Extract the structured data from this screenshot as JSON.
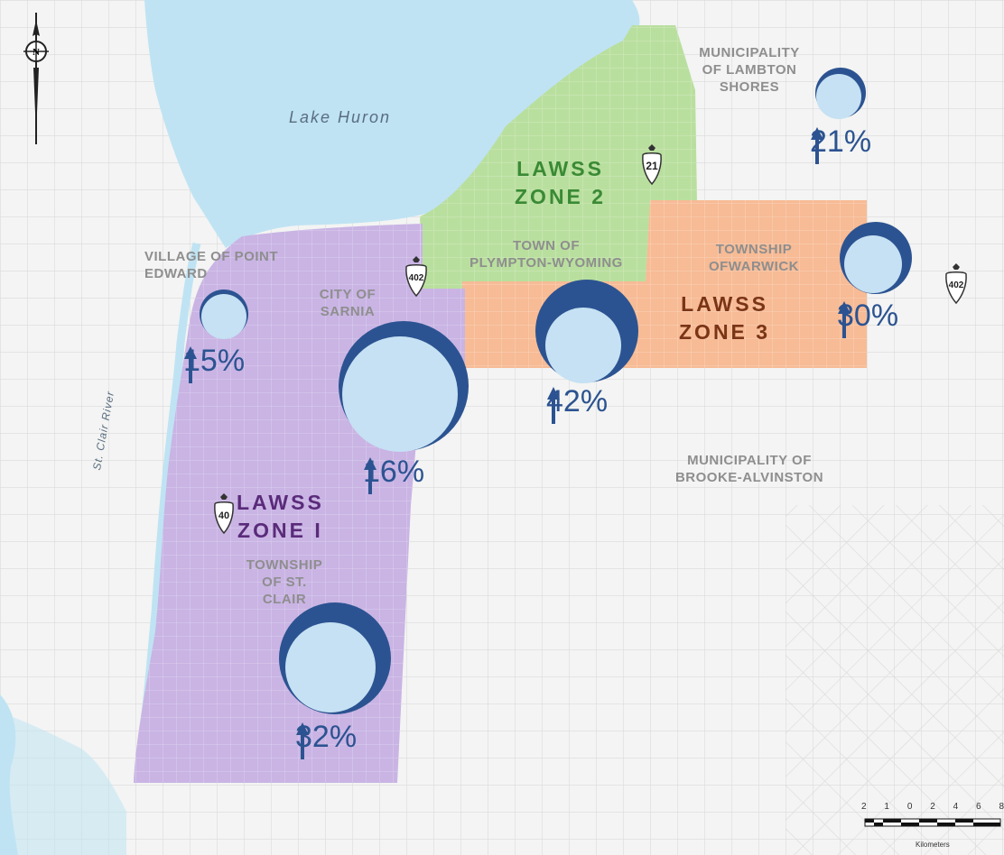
{
  "map": {
    "water_labels": {
      "lake": "Lake Huron",
      "river": "St. Clair River"
    },
    "municipalities": {
      "lambton_shores": [
        "MUNICIPALITY",
        "OF LAMBTON",
        "SHORES"
      ],
      "point_edward": [
        "VILLAGE OF POINT",
        "EDWARD"
      ],
      "sarnia": [
        "CITY OF",
        "SARNIA"
      ],
      "plympton_wyoming": [
        "TOWN OF",
        "PLYMPTON-WYOMING"
      ],
      "warwick": [
        "TOWNSHIP",
        "OFWARWICK"
      ],
      "brooke_alvinston": [
        "MUNICIPALITY OF",
        "BROOKE-ALVINSTON"
      ],
      "st_clair": [
        "TOWNSHIP",
        "OF ST.",
        "CLAIR"
      ]
    },
    "zones": [
      {
        "id": "zone-1",
        "lines": [
          "LAWSS",
          "ZONE I"
        ],
        "color": "#5a2b7a",
        "fill": "#c9b4e4"
      },
      {
        "id": "zone-2",
        "lines": [
          "LAWSS",
          "ZONE 2"
        ],
        "color": "#3a8a35",
        "fill": "#b9df9e"
      },
      {
        "id": "zone-3",
        "lines": [
          "LAWSS",
          "ZONE 3"
        ],
        "color": "#7a3416",
        "fill": "#f7bb95"
      }
    ],
    "highway_shields": [
      "21",
      "402",
      "402",
      "40"
    ],
    "growth_markers": [
      {
        "area": "lambton-shores",
        "percent": "21%",
        "growth": 0.21
      },
      {
        "area": "point-edward",
        "percent": "15%",
        "growth": 0.15
      },
      {
        "area": "sarnia",
        "percent": "16%",
        "growth": 0.16
      },
      {
        "area": "plympton-wyoming",
        "percent": "42%",
        "growth": 0.42
      },
      {
        "area": "warwick",
        "percent": "30%",
        "growth": 0.3
      },
      {
        "area": "st-clair",
        "percent": "32%",
        "growth": 0.32
      }
    ],
    "scale_bar": {
      "ticks": [
        "2",
        "1",
        "0",
        "2",
        "4",
        "6",
        "8"
      ],
      "unit": "Kilometers"
    },
    "colors": {
      "water": "#bfe3f3",
      "marker_outer": "#2c5391",
      "marker_inner": "#c5e1f3",
      "arrow": "#2c5391"
    }
  }
}
